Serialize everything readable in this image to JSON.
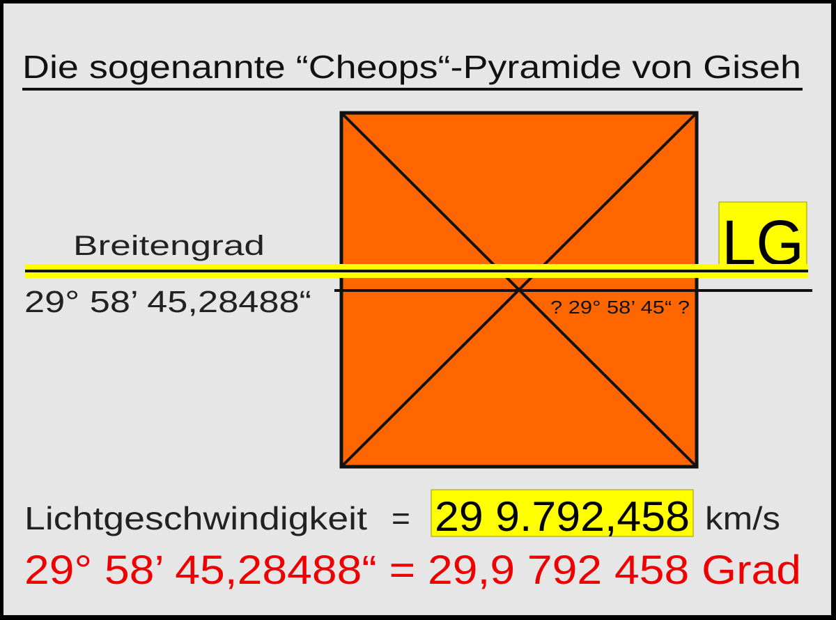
{
  "title": "Die sogenannte “Cheops“-Pyramide von Giseh",
  "latitude_label": "Breitengrad",
  "latitude_value": "29° 58’ 45,28488“",
  "pyramid_latitude": "? 29° 58’ 45“ ?",
  "lg_badge": "LG",
  "speed_label": "Lichtgeschwindigkeit",
  "equals": "=",
  "speed_value": "29 9.792,458",
  "speed_unit": "km/s",
  "conversion": "29° 58’ 45,28488“ = 29,9 792 458 Grad",
  "colors": {
    "background": "#e6e6e6",
    "pyramid": "#ff6600",
    "highlight": "#ffff00",
    "conversion_text": "#ee0000"
  }
}
